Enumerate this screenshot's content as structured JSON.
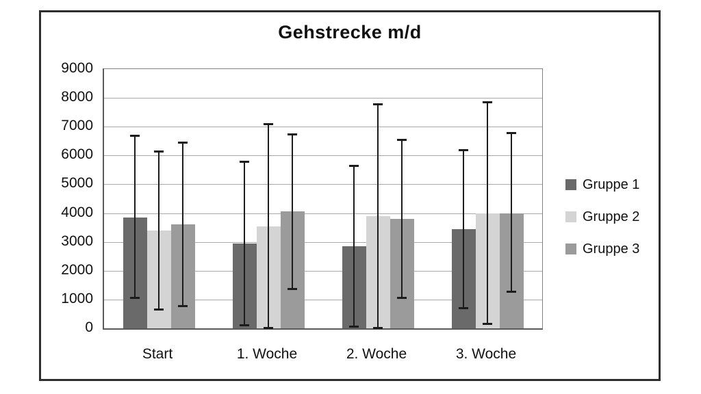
{
  "chart_data": {
    "type": "bar",
    "title": "Gehstrecke m/d",
    "categories": [
      "Start",
      "1. Woche",
      "2. Woche",
      "3. Woche"
    ],
    "series": [
      {
        "name": "Gruppe 1",
        "color": "#6a6a6a",
        "values": [
          3850,
          2950,
          2850,
          3450
        ],
        "whisker_low": [
          1050,
          100,
          50,
          700
        ],
        "whisker_high": [
          6700,
          5800,
          5650,
          6200
        ]
      },
      {
        "name": "Gruppe 2",
        "color": "#d4d4d4",
        "values": [
          3400,
          3550,
          3900,
          4000
        ],
        "whisker_low": [
          650,
          0,
          0,
          150
        ],
        "whisker_high": [
          6150,
          7100,
          7800,
          7850
        ]
      },
      {
        "name": "Gruppe 3",
        "color": "#9b9b9b",
        "values": [
          3600,
          4050,
          3800,
          4000
        ],
        "whisker_low": [
          750,
          1350,
          1050,
          1250
        ],
        "whisker_high": [
          6450,
          6750,
          6550,
          6800
        ]
      }
    ],
    "y_axis": {
      "min": 0,
      "max": 9000,
      "step": 1000,
      "tick_labels": [
        "0",
        "1000",
        "2000",
        "3000",
        "4000",
        "5000",
        "6000",
        "7000",
        "8000",
        "9000"
      ]
    },
    "x_axis": {
      "tick_labels": [
        "Start",
        "1. Woche",
        "2. Woche",
        "3. Woche"
      ]
    },
    "grid": true,
    "error_bars": true,
    "legend_position": "right",
    "colors": {
      "grid": "#a8a8a8",
      "error_bar": "#1c1c1c",
      "frame": "#2e2e2e",
      "text": "#111111"
    }
  }
}
